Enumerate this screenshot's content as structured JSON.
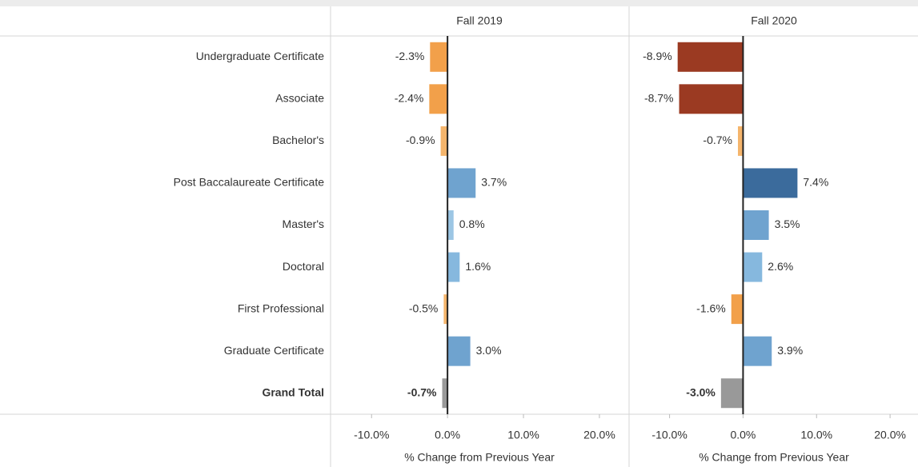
{
  "chart_data": {
    "type": "bar",
    "categories": [
      "Undergraduate Certificate",
      "Associate",
      "Bachelor's",
      "Post Baccalaureate Certificate",
      "Master's",
      "Doctoral",
      "First Professional",
      "Graduate Certificate",
      "Grand Total"
    ],
    "series": [
      {
        "name": "Fall 2019",
        "values": [
          -2.3,
          -2.4,
          -0.9,
          3.7,
          0.8,
          1.6,
          -0.5,
          3.0,
          -0.7
        ],
        "value_labels": [
          "-2.3%",
          "-2.4%",
          "-0.9%",
          "3.7%",
          "0.8%",
          "1.6%",
          "-0.5%",
          "3.0%",
          "-0.7%"
        ],
        "colors": [
          "#f2a04a",
          "#f2a04a",
          "#f5b56c",
          "#6fa3cf",
          "#9cc6e4",
          "#86b8de",
          "#f5b56c",
          "#6fa3cf",
          "#999999"
        ]
      },
      {
        "name": "Fall 2020",
        "values": [
          -8.9,
          -8.7,
          -0.7,
          7.4,
          3.5,
          2.6,
          -1.6,
          3.9,
          -3.0
        ],
        "value_labels": [
          "-8.9%",
          "-8.7%",
          "-0.7%",
          "7.4%",
          "3.5%",
          "2.6%",
          "-1.6%",
          "3.9%",
          "-3.0%"
        ],
        "colors": [
          "#9b3a22",
          "#9b3a22",
          "#f5b56c",
          "#3b6b9c",
          "#6fa3cf",
          "#86b8de",
          "#f2a04a",
          "#6fa3cf",
          "#999999"
        ]
      }
    ],
    "xlim": [
      -15.4,
      23.8
    ],
    "xticks": [
      {
        "value": -10,
        "label": "-10.0%"
      },
      {
        "value": 0,
        "label": "0.0%"
      },
      {
        "value": 10,
        "label": "10.0%"
      },
      {
        "value": 20,
        "label": "20.0%"
      }
    ],
    "xlabel": "% Change from Previous Year"
  }
}
